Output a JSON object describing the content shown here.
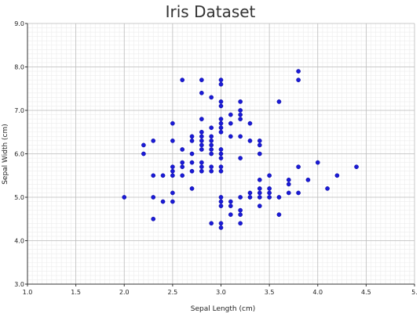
{
  "chart_data": {
    "type": "scatter",
    "title": "Iris Dataset",
    "xlabel": "Sepal Length (cm)",
    "ylabel": "Sepal Width (cm)",
    "xlim": [
      1.0,
      5.0
    ],
    "ylim": [
      3.0,
      9.0
    ],
    "x_ticks": [
      "1.0",
      "1.5",
      "2.0",
      "2.5",
      "3.0",
      "3.5",
      "4.0",
      "4.5",
      "5."
    ],
    "y_ticks": [
      "3.0",
      "4.0",
      "5.0",
      "6.0",
      "7.0",
      "8.0",
      "9.0"
    ],
    "grid": true,
    "minor_grid": true,
    "marker_color": "#1a1ad6",
    "series": [
      {
        "points": [
          [
            2.0,
            5.0
          ],
          [
            2.2,
            6.0
          ],
          [
            2.2,
            6.2
          ],
          [
            2.3,
            4.5
          ],
          [
            2.3,
            5.0
          ],
          [
            2.3,
            5.5
          ],
          [
            2.3,
            6.3
          ],
          [
            2.4,
            4.9
          ],
          [
            2.4,
            5.5
          ],
          [
            2.5,
            4.9
          ],
          [
            2.5,
            5.1
          ],
          [
            2.5,
            5.5
          ],
          [
            2.5,
            5.6
          ],
          [
            2.5,
            5.7
          ],
          [
            2.5,
            6.3
          ],
          [
            2.5,
            6.7
          ],
          [
            2.6,
            5.5
          ],
          [
            2.6,
            5.7
          ],
          [
            2.6,
            5.8
          ],
          [
            2.6,
            6.1
          ],
          [
            2.6,
            7.7
          ],
          [
            2.7,
            5.2
          ],
          [
            2.7,
            5.6
          ],
          [
            2.7,
            5.8
          ],
          [
            2.7,
            6.0
          ],
          [
            2.7,
            6.3
          ],
          [
            2.7,
            6.4
          ],
          [
            2.8,
            5.6
          ],
          [
            2.8,
            5.7
          ],
          [
            2.8,
            5.8
          ],
          [
            2.8,
            6.1
          ],
          [
            2.8,
            6.2
          ],
          [
            2.8,
            6.3
          ],
          [
            2.8,
            6.4
          ],
          [
            2.8,
            6.5
          ],
          [
            2.8,
            6.8
          ],
          [
            2.8,
            7.4
          ],
          [
            2.8,
            7.7
          ],
          [
            2.9,
            4.4
          ],
          [
            2.9,
            5.6
          ],
          [
            2.9,
            5.7
          ],
          [
            2.9,
            6.0
          ],
          [
            2.9,
            6.1
          ],
          [
            2.9,
            6.2
          ],
          [
            2.9,
            6.3
          ],
          [
            2.9,
            6.4
          ],
          [
            2.9,
            6.6
          ],
          [
            2.9,
            7.3
          ],
          [
            3.0,
            4.3
          ],
          [
            3.0,
            4.4
          ],
          [
            3.0,
            4.8
          ],
          [
            3.0,
            4.9
          ],
          [
            3.0,
            5.0
          ],
          [
            3.0,
            5.6
          ],
          [
            3.0,
            5.7
          ],
          [
            3.0,
            5.9
          ],
          [
            3.0,
            6.0
          ],
          [
            3.0,
            6.1
          ],
          [
            3.0,
            6.5
          ],
          [
            3.0,
            6.6
          ],
          [
            3.0,
            6.7
          ],
          [
            3.0,
            6.8
          ],
          [
            3.0,
            7.1
          ],
          [
            3.0,
            7.2
          ],
          [
            3.0,
            7.6
          ],
          [
            3.0,
            7.7
          ],
          [
            3.1,
            4.6
          ],
          [
            3.1,
            4.8
          ],
          [
            3.1,
            4.9
          ],
          [
            3.1,
            6.4
          ],
          [
            3.1,
            6.7
          ],
          [
            3.1,
            6.9
          ],
          [
            3.2,
            4.4
          ],
          [
            3.2,
            4.6
          ],
          [
            3.2,
            4.7
          ],
          [
            3.2,
            5.0
          ],
          [
            3.2,
            5.9
          ],
          [
            3.2,
            6.4
          ],
          [
            3.2,
            6.8
          ],
          [
            3.2,
            6.9
          ],
          [
            3.2,
            7.0
          ],
          [
            3.2,
            7.2
          ],
          [
            3.3,
            5.0
          ],
          [
            3.3,
            5.1
          ],
          [
            3.3,
            6.3
          ],
          [
            3.3,
            6.7
          ],
          [
            3.4,
            4.8
          ],
          [
            3.4,
            5.0
          ],
          [
            3.4,
            5.1
          ],
          [
            3.4,
            5.2
          ],
          [
            3.4,
            5.4
          ],
          [
            3.4,
            6.0
          ],
          [
            3.4,
            6.2
          ],
          [
            3.4,
            6.3
          ],
          [
            3.5,
            5.0
          ],
          [
            3.5,
            5.1
          ],
          [
            3.5,
            5.2
          ],
          [
            3.5,
            5.5
          ],
          [
            3.6,
            4.6
          ],
          [
            3.6,
            5.0
          ],
          [
            3.6,
            7.2
          ],
          [
            3.7,
            5.1
          ],
          [
            3.7,
            5.3
          ],
          [
            3.7,
            5.4
          ],
          [
            3.8,
            5.1
          ],
          [
            3.8,
            5.7
          ],
          [
            3.8,
            7.7
          ],
          [
            3.8,
            7.9
          ],
          [
            3.9,
            5.4
          ],
          [
            4.0,
            5.8
          ],
          [
            4.1,
            5.2
          ],
          [
            4.2,
            5.5
          ],
          [
            4.4,
            5.7
          ]
        ]
      }
    ]
  }
}
